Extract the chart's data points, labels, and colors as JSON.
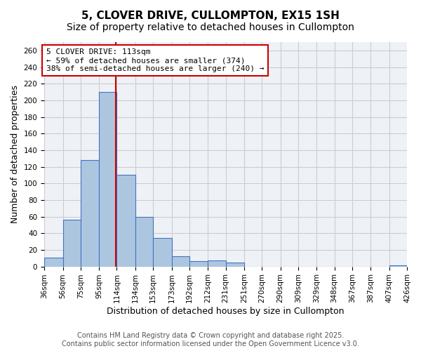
{
  "title1": "5, CLOVER DRIVE, CULLOMPTON, EX15 1SH",
  "title2": "Size of property relative to detached houses in Cullompton",
  "xlabel": "Distribution of detached houses by size in Cullompton",
  "ylabel": "Number of detached properties",
  "bar_edges": [
    36,
    56,
    75,
    95,
    114,
    134,
    153,
    173,
    192,
    212,
    231,
    251,
    270,
    290,
    309,
    329,
    348,
    367,
    387,
    407,
    426
  ],
  "bar_heights": [
    11,
    56,
    128,
    210,
    110,
    60,
    34,
    12,
    6,
    7,
    5,
    0,
    0,
    0,
    0,
    0,
    0,
    0,
    0,
    1,
    0
  ],
  "bar_color": "#adc6e0",
  "bar_edge_color": "#4472c4",
  "bar_linewidth": 0.8,
  "vline_x": 113,
  "vline_color": "#cc0000",
  "annotation_text": "5 CLOVER DRIVE: 113sqm\n← 59% of detached houses are smaller (374)\n38% of semi-detached houses are larger (240) →",
  "annotation_box_color": "#cc0000",
  "annotation_font_size": 8,
  "ylim": [
    0,
    270
  ],
  "yticks": [
    0,
    20,
    40,
    60,
    80,
    100,
    120,
    140,
    160,
    180,
    200,
    220,
    240,
    260
  ],
  "tick_labels": [
    "36sqm",
    "56sqm",
    "75sqm",
    "95sqm",
    "114sqm",
    "134sqm",
    "153sqm",
    "173sqm",
    "192sqm",
    "212sqm",
    "231sqm",
    "251sqm",
    "270sqm",
    "290sqm",
    "309sqm",
    "329sqm",
    "348sqm",
    "367sqm",
    "387sqm",
    "407sqm",
    "426sqm"
  ],
  "grid_color": "#cccccc",
  "bg_color": "#eef2f7",
  "title_fontsize": 11,
  "subtitle_fontsize": 10,
  "axis_label_fontsize": 9,
  "tick_fontsize": 7.5,
  "footer_text": "Contains HM Land Registry data © Crown copyright and database right 2025.\nContains public sector information licensed under the Open Government Licence v3.0.",
  "footer_fontsize": 7
}
